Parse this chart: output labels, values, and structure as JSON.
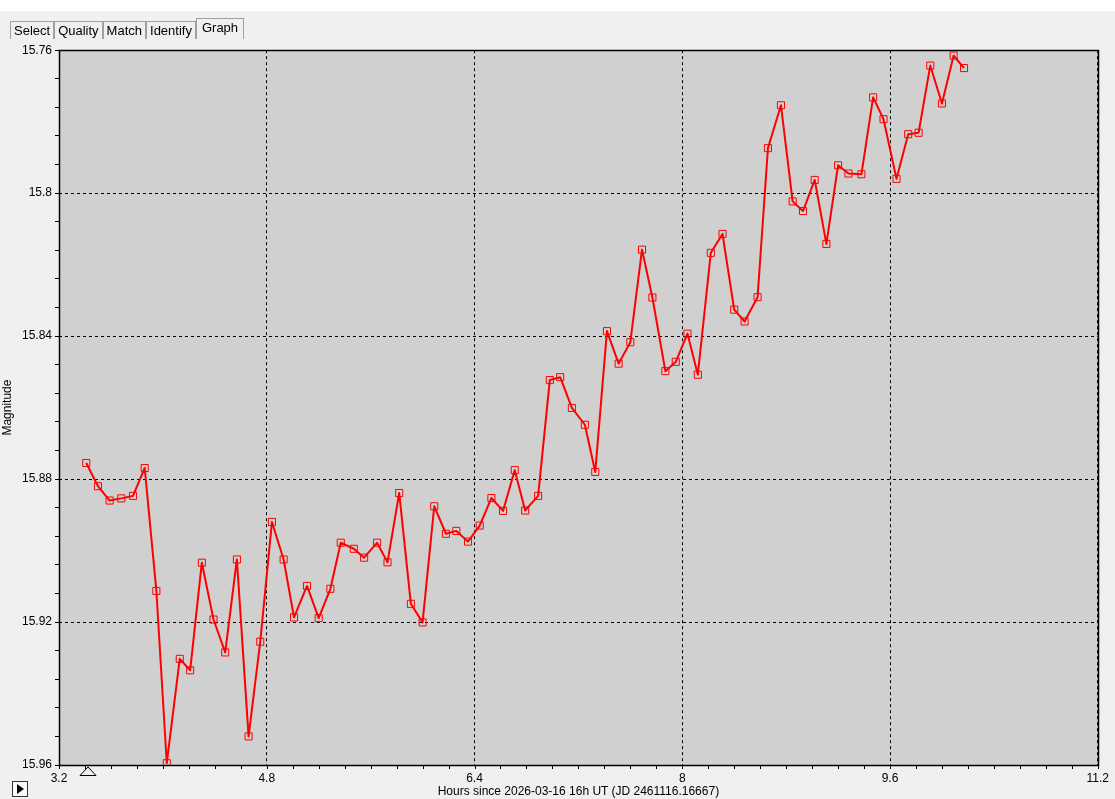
{
  "chart_data": {
    "type": "line",
    "xlabel": "Hours since 2026-03-16 16h UT (JD 2461116.16667)",
    "ylabel": "Magnitude",
    "annotations": [
      "Select",
      "Quality",
      "Match",
      "Identify",
      "Graph"
    ],
    "x": [
      3.41,
      3.5,
      3.59,
      3.68,
      3.77,
      3.86,
      3.95,
      4.03,
      4.13,
      4.21,
      4.3,
      4.39,
      4.48,
      4.57,
      4.66,
      4.75,
      4.84,
      4.93,
      5.01,
      5.11,
      5.2,
      5.29,
      5.37,
      5.47,
      5.55,
      5.65,
      5.73,
      5.82,
      5.91,
      6.0,
      6.09,
      6.18,
      6.26,
      6.35,
      6.44,
      6.53,
      6.62,
      6.71,
      6.79,
      6.89,
      6.98,
      7.06,
      7.15,
      7.25,
      7.33,
      7.42,
      7.51,
      7.6,
      7.69,
      7.77,
      7.87,
      7.95,
      8.04,
      8.12,
      8.22,
      8.31,
      8.4,
      8.48,
      8.58,
      8.66,
      8.76,
      8.85,
      8.93,
      9.02,
      9.11,
      9.2,
      9.28,
      9.38,
      9.47,
      9.55,
      9.65,
      9.74,
      9.82,
      9.91,
      10.0,
      10.09,
      10.17
    ],
    "series": [
      {
        "color": "#ff0000",
        "values": [
          15.8755,
          15.882,
          15.886,
          15.8854,
          15.8847,
          15.8769,
          15.9113,
          15.9595,
          15.9303,
          15.9335,
          15.9034,
          15.9193,
          15.9285,
          15.9025,
          15.952,
          15.9255,
          15.892,
          15.9025,
          15.9187,
          15.9099,
          15.9189,
          15.9107,
          15.8978,
          15.8995,
          15.902,
          15.8978,
          15.9033,
          15.8839,
          15.9149,
          15.9201,
          15.8876,
          15.8953,
          15.8945,
          15.8975,
          15.893,
          15.8853,
          15.8889,
          15.8775,
          15.8888,
          15.8847,
          15.8523,
          15.8515,
          15.8601,
          15.8648,
          15.878,
          15.8386,
          15.8477,
          15.8417,
          15.8158,
          15.8292,
          15.8498,
          15.8472,
          15.8393,
          15.8508,
          15.8167,
          15.8114,
          15.8326,
          15.8359,
          15.8291,
          15.7874,
          15.7754,
          15.8023,
          15.805,
          15.7963,
          15.8142,
          15.7922,
          15.7945,
          15.7947,
          15.7732,
          15.7793,
          15.796,
          15.7835,
          15.7831,
          15.7643,
          15.7749,
          15.7615,
          15.765
        ]
      }
    ],
    "xlim": [
      3.2,
      11.2
    ],
    "xticks": [
      3.2,
      {
        "value": 3.4,
        "label": null
      },
      {
        "value": 3.6,
        "label": null
      },
      {
        "value": 3.8,
        "label": null
      },
      {
        "value": 4.0,
        "label": null
      },
      {
        "value": 4.2,
        "label": null
      },
      {
        "value": 4.4,
        "label": null
      },
      {
        "value": 4.6,
        "label": null
      },
      4.8,
      {
        "value": 5.0,
        "label": null
      },
      {
        "value": 5.2,
        "label": null
      },
      {
        "value": 5.4,
        "label": null
      },
      {
        "value": 5.6,
        "label": null
      },
      {
        "value": 5.8,
        "label": null
      },
      {
        "value": 6.0,
        "label": null
      },
      {
        "value": 6.2,
        "label": null
      },
      6.4,
      {
        "value": 6.6,
        "label": null
      },
      {
        "value": 6.8,
        "label": null
      },
      {
        "value": 7.0,
        "label": null
      },
      {
        "value": 7.2,
        "label": null
      },
      {
        "value": 7.4,
        "label": null
      },
      {
        "value": 7.6,
        "label": null
      },
      {
        "value": 7.8,
        "label": null
      },
      8,
      {
        "value": 8.2,
        "label": null
      },
      {
        "value": 8.4,
        "label": null
      },
      {
        "value": 8.6,
        "label": null
      },
      {
        "value": 8.8,
        "label": null
      },
      {
        "value": 9.0,
        "label": null
      },
      {
        "value": 9.2,
        "label": null
      },
      {
        "value": 9.4,
        "label": null
      },
      9.6,
      {
        "value": 9.8,
        "label": null
      },
      {
        "value": 10.0,
        "label": null
      },
      {
        "value": 10.2,
        "label": null
      },
      {
        "value": 10.4,
        "label": null
      },
      {
        "value": 10.6,
        "label": null
      },
      {
        "value": 10.8,
        "label": null
      },
      {
        "value": 11.0,
        "label": null
      },
      11.2
    ],
    "ylim": [
      15.96,
      15.76
    ],
    "yticks": [
      15.76,
      {
        "value": 15.768,
        "label": null
      },
      {
        "value": 15.776,
        "label": null
      },
      {
        "value": 15.784,
        "label": null
      },
      {
        "value": 15.792,
        "label": null
      },
      15.8,
      {
        "value": 15.808,
        "label": null
      },
      {
        "value": 15.816,
        "label": null
      },
      {
        "value": 15.824,
        "label": null
      },
      {
        "value": 15.832,
        "label": null
      },
      15.84,
      {
        "value": 15.848,
        "label": null
      },
      {
        "value": 15.856,
        "label": null
      },
      {
        "value": 15.864,
        "label": null
      },
      {
        "value": 15.872,
        "label": null
      },
      15.88,
      {
        "value": 15.888,
        "label": null
      },
      {
        "value": 15.896,
        "label": null
      },
      {
        "value": 15.904,
        "label": null
      },
      {
        "value": 15.912,
        "label": null
      },
      15.92,
      {
        "value": 15.928,
        "label": null
      },
      {
        "value": 15.936,
        "label": null
      },
      {
        "value": 15.944,
        "label": null
      },
      {
        "value": 15.952,
        "label": null
      },
      15.96
    ],
    "grid": true,
    "legend": false,
    "marker": "square",
    "line_style": "solid"
  }
}
